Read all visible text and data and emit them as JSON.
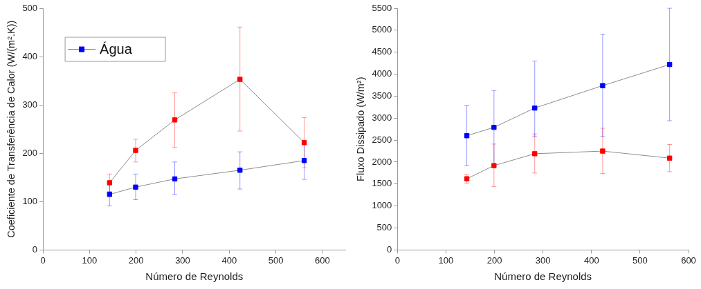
{
  "chart_data": [
    {
      "type": "line",
      "xlabel": "Número de Reynolds",
      "ylabel": "Coeficiente de Transferência de Calor (W/(m².K))",
      "x": [
        143,
        199,
        283,
        423,
        561
      ],
      "xlim": [
        0,
        650
      ],
      "xticks": [
        0,
        100,
        200,
        300,
        400,
        500,
        600
      ],
      "ylim": [
        0,
        500
      ],
      "yticks": [
        0,
        100,
        200,
        300,
        400,
        500
      ],
      "marker": "square",
      "grid": false,
      "legend": "top left",
      "series": [
        {
          "color": "#ff0000",
          "values": [
            139,
            206,
            269,
            353,
            222
          ],
          "errors": [
            [
              121,
              157
            ],
            [
              182,
              229
            ],
            [
              212,
              325
            ],
            [
              246,
              461
            ],
            [
              170,
              274
            ]
          ]
        },
        {
          "name": "Água",
          "color": "#0000ff",
          "values": [
            115,
            130,
            147,
            165,
            185
          ],
          "errors": [
            [
              91,
              138
            ],
            [
              104,
              157
            ],
            [
              114,
              182
            ],
            [
              126,
              203
            ],
            [
              146,
              222
            ]
          ]
        }
      ]
    },
    {
      "type": "line",
      "xlabel": "Número de Reynolds",
      "ylabel": "Fluxo Dissipado (W/m²)",
      "x": [
        143,
        199,
        283,
        423,
        561
      ],
      "xlim": [
        0,
        600
      ],
      "xticks": [
        0,
        100,
        200,
        300,
        400,
        500,
        600
      ],
      "ylim": [
        0,
        5500
      ],
      "yticks": [
        0,
        500,
        1000,
        1500,
        2000,
        2500,
        3000,
        3500,
        4000,
        4500,
        5000,
        5500
      ],
      "marker": "square",
      "grid": false,
      "series": [
        {
          "color": "#ff0000",
          "values": [
            1620,
            1920,
            2190,
            2250,
            2090
          ],
          "errors": [
            [
              1520,
              1720
            ],
            [
              1440,
              2410
            ],
            [
              1750,
              2640
            ],
            [
              1740,
              2770
            ],
            [
              1780,
              2400
            ]
          ]
        },
        {
          "color": "#0000ff",
          "values": [
            2600,
            2790,
            3230,
            3740,
            4220
          ],
          "errors": [
            [
              1920,
              3290
            ],
            [
              1950,
              3630
            ],
            [
              2580,
              4300
            ],
            [
              2580,
              4910
            ],
            [
              2940,
              5500
            ]
          ]
        }
      ]
    }
  ]
}
